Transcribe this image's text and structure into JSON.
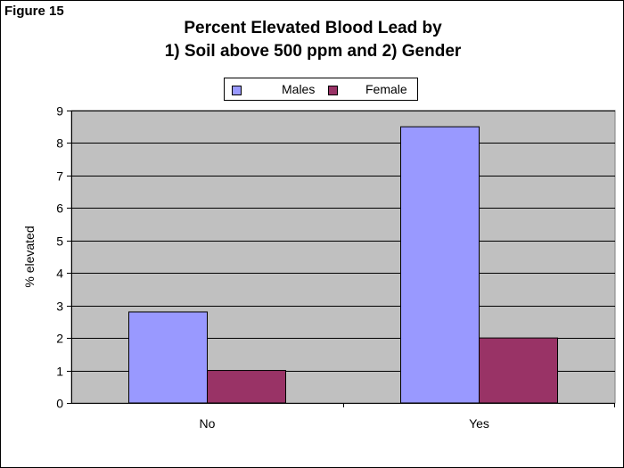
{
  "figure_label": "Figure 15",
  "chart_data": {
    "type": "bar",
    "title": [
      "Percent Elevated Blood Lead by",
      "1) Soil above 500 ppm and 2) Gender"
    ],
    "xlabel": "",
    "ylabel": "% elevated",
    "categories": [
      "No",
      "Yes"
    ],
    "series": [
      {
        "name": "Males",
        "values": [
          2.8,
          8.5
        ],
        "color": "#9999ff"
      },
      {
        "name": "Female",
        "values": [
          1.0,
          2.0
        ],
        "color": "#993366"
      }
    ],
    "ylim": [
      0,
      9
    ],
    "yticks": [
      "0",
      "1",
      "2",
      "3",
      "4",
      "5",
      "6",
      "7",
      "8",
      "9"
    ],
    "grid": true,
    "plot_background": "#c0c0c0",
    "legend_position": "top-center"
  }
}
